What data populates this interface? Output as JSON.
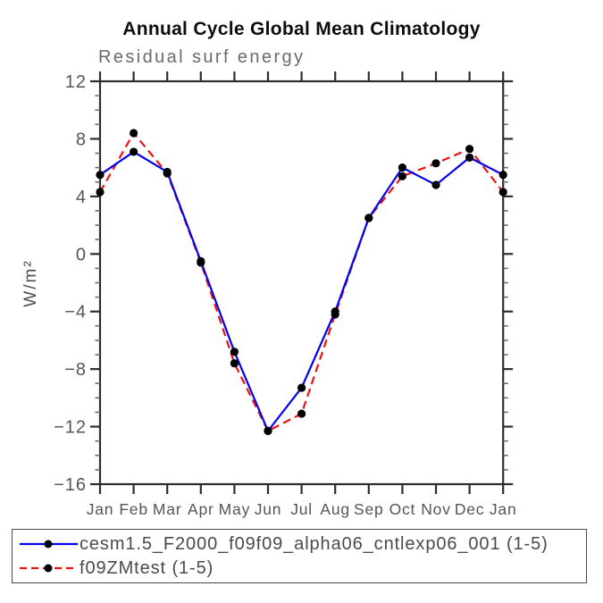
{
  "chart_data": {
    "type": "line",
    "title": "Annual Cycle Global Mean Climatology",
    "subtitle": "Residual surf energy",
    "ylabel": "W/m²",
    "xlabel": "",
    "categories": [
      "Jan",
      "Feb",
      "Mar",
      "Apr",
      "May",
      "Jun",
      "Jul",
      "Aug",
      "Sep",
      "Oct",
      "Nov",
      "Dec",
      "Jan"
    ],
    "ylim": [
      -16,
      12
    ],
    "y_major_tick_step": 4,
    "y_minor_tick_step": 1,
    "y_tick_labels": [
      "12",
      "8",
      "4",
      "0",
      "−4",
      "−8",
      "−12",
      "−16"
    ],
    "grid": false,
    "legend_position": "bottom-left-box",
    "frame_color": "#2d2d2d",
    "text_color": "#555555",
    "marker_color": "#000000",
    "series": [
      {
        "name": "cesm1.5_F2000_f09f09_alpha06_cntlexp06_001 (1-5)",
        "color": "#0000ee",
        "line_style": "solid",
        "marker": "filled-circle",
        "values": [
          5.5,
          7.1,
          5.7,
          -0.5,
          -6.8,
          -12.3,
          -9.3,
          -4.0,
          2.5,
          6.0,
          4.8,
          6.7,
          5.5
        ]
      },
      {
        "name": "f09ZMtest (1-5)",
        "color": "#ee1111",
        "line_style": "dashed",
        "marker": "filled-circle",
        "values": [
          4.3,
          8.4,
          5.6,
          -0.6,
          -7.6,
          -12.3,
          -11.1,
          -4.2,
          2.5,
          5.4,
          6.3,
          7.3,
          4.3
        ]
      }
    ]
  }
}
